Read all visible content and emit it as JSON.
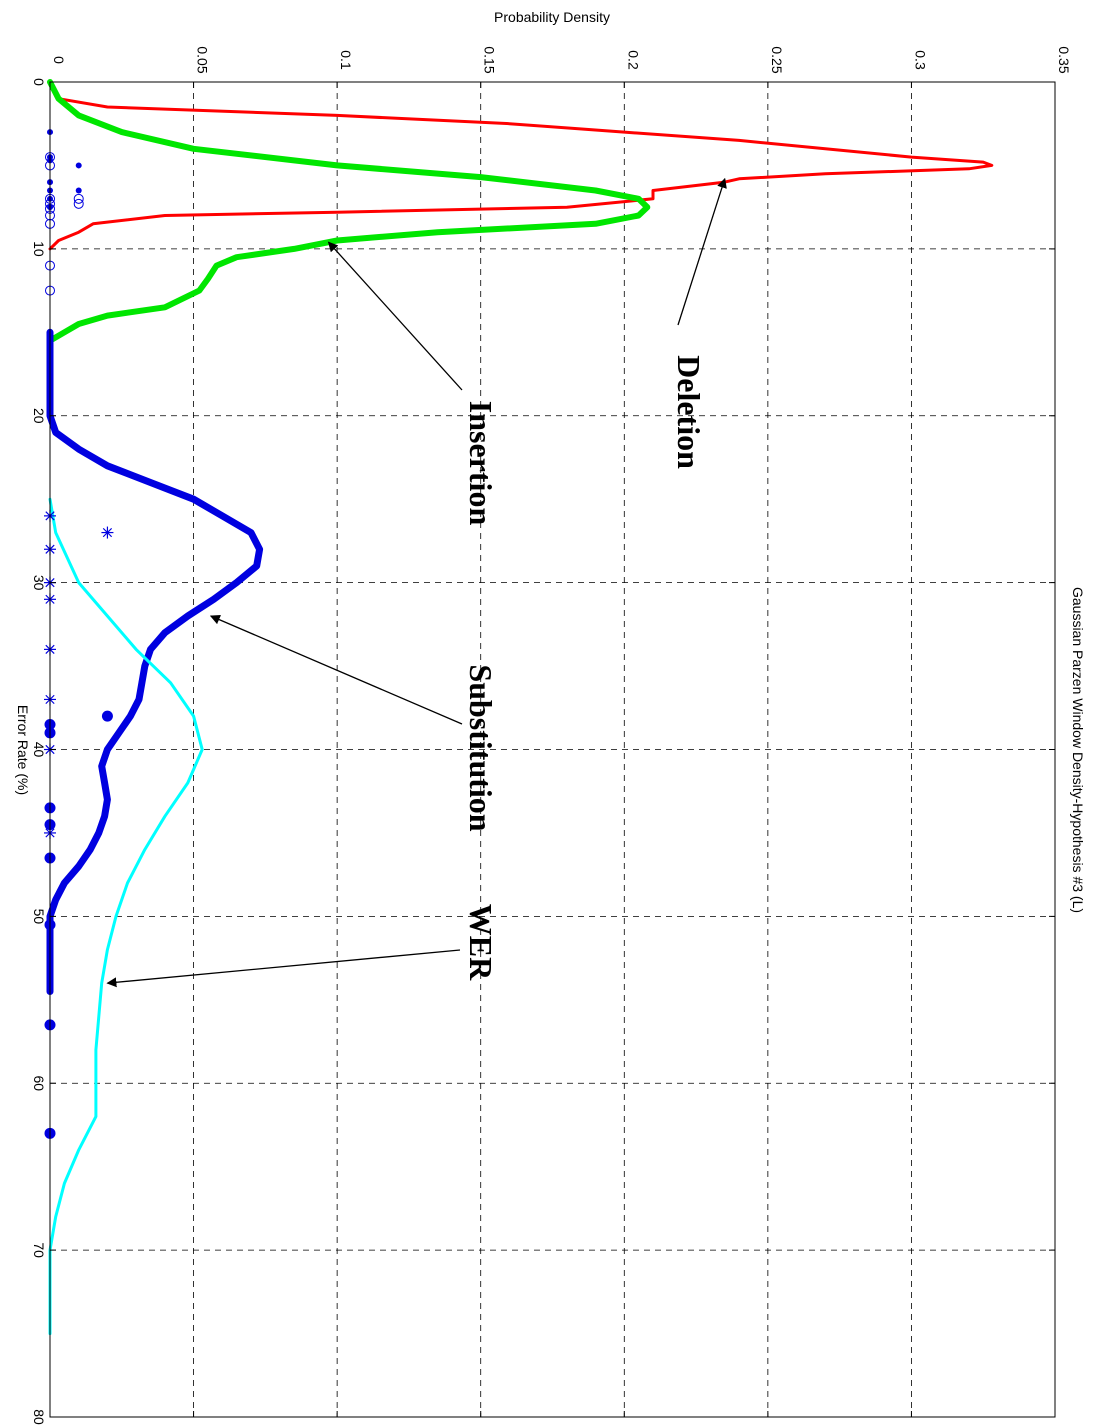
{
  "chart_data": {
    "type": "line",
    "title": "Gaussian Parzen Window Density-Hypothesis #3 (L)",
    "xlabel": "Error Rate (%)",
    "ylabel": "Probability Density",
    "xlim": [
      0,
      80
    ],
    "ylim": [
      0,
      0.35
    ],
    "x_ticks": [
      "0",
      "10",
      "20",
      "30",
      "40",
      "50",
      "60",
      "70",
      "80"
    ],
    "y_ticks": [
      "0",
      "0.05",
      "0.1",
      "0.15",
      "0.2",
      "0.25",
      "0.3",
      "0.35"
    ],
    "grid": true,
    "orientation": "rotated 90 degrees clockwise",
    "series": [
      {
        "color": "#ff0000",
        "points": [
          [
            0,
            0
          ],
          [
            1,
            0.003
          ],
          [
            1.5,
            0.02
          ],
          [
            2,
            0.1
          ],
          [
            2.5,
            0.16
          ],
          [
            3,
            0.2
          ],
          [
            3.5,
            0.24
          ],
          [
            4,
            0.27
          ],
          [
            4.5,
            0.3
          ],
          [
            4.8,
            0.325
          ],
          [
            5,
            0.328
          ],
          [
            5.2,
            0.32
          ],
          [
            5.5,
            0.27
          ],
          [
            5.8,
            0.24
          ],
          [
            6,
            0.235
          ],
          [
            6.5,
            0.21
          ],
          [
            7,
            0.21
          ],
          [
            7.5,
            0.18
          ],
          [
            7.8,
            0.1
          ],
          [
            8,
            0.04
          ],
          [
            8.5,
            0.015
          ],
          [
            9,
            0.01
          ],
          [
            9.5,
            0.003
          ],
          [
            10,
            0
          ]
        ]
      },
      {
        "color": "#00e600",
        "points": [
          [
            0,
            0
          ],
          [
            1,
            0.003
          ],
          [
            2,
            0.01
          ],
          [
            3,
            0.025
          ],
          [
            4,
            0.05
          ],
          [
            5,
            0.1
          ],
          [
            5.7,
            0.15
          ],
          [
            6.5,
            0.19
          ],
          [
            7,
            0.205
          ],
          [
            7.5,
            0.208
          ],
          [
            8,
            0.205
          ],
          [
            8.5,
            0.19
          ],
          [
            9,
            0.135
          ],
          [
            9.5,
            0.1
          ],
          [
            10,
            0.085
          ],
          [
            10.5,
            0.065
          ],
          [
            11,
            0.058
          ],
          [
            11.8,
            0.055
          ],
          [
            12.5,
            0.052
          ],
          [
            13.5,
            0.04
          ],
          [
            14,
            0.02
          ],
          [
            14.5,
            0.01
          ],
          [
            15,
            0.005
          ],
          [
            15.5,
            0
          ]
        ]
      },
      {
        "color": "#0000e0",
        "points": [
          [
            15,
            0
          ],
          [
            20,
            0
          ],
          [
            21,
            0.002
          ],
          [
            22,
            0.01
          ],
          [
            23,
            0.02
          ],
          [
            24,
            0.035
          ],
          [
            25,
            0.05
          ],
          [
            26,
            0.06
          ],
          [
            27,
            0.07
          ],
          [
            28,
            0.073
          ],
          [
            29,
            0.072
          ],
          [
            30,
            0.065
          ],
          [
            31,
            0.057
          ],
          [
            32,
            0.048
          ],
          [
            33,
            0.04
          ],
          [
            34,
            0.035
          ],
          [
            35,
            0.033
          ],
          [
            36,
            0.032
          ],
          [
            37,
            0.031
          ],
          [
            38,
            0.028
          ],
          [
            39,
            0.024
          ],
          [
            40,
            0.02
          ],
          [
            41,
            0.018
          ],
          [
            42,
            0.019
          ],
          [
            43,
            0.02
          ],
          [
            44,
            0.019
          ],
          [
            45,
            0.017
          ],
          [
            46,
            0.014
          ],
          [
            47,
            0.01
          ],
          [
            48,
            0.005
          ],
          [
            49,
            0.002
          ],
          [
            50,
            0
          ],
          [
            54.5,
            0
          ]
        ]
      },
      {
        "color": "#00ffff",
        "points": [
          [
            25,
            0
          ],
          [
            27,
            0.002
          ],
          [
            30,
            0.01
          ],
          [
            32,
            0.02
          ],
          [
            34,
            0.03
          ],
          [
            36,
            0.042
          ],
          [
            38,
            0.05
          ],
          [
            40,
            0.053
          ],
          [
            42,
            0.048
          ],
          [
            44,
            0.04
          ],
          [
            46,
            0.033
          ],
          [
            48,
            0.027
          ],
          [
            50,
            0.023
          ],
          [
            52,
            0.02
          ],
          [
            54,
            0.018
          ],
          [
            56,
            0.017
          ],
          [
            58,
            0.016
          ],
          [
            60,
            0.016
          ],
          [
            62,
            0.016
          ],
          [
            64,
            0.01
          ],
          [
            66,
            0.005
          ],
          [
            68,
            0.002
          ],
          [
            70,
            0
          ],
          [
            75,
            0
          ]
        ]
      }
    ],
    "scatter": [
      {
        "marker": "dot",
        "color": "#0000e0",
        "points": [
          [
            3,
            0
          ],
          [
            4.5,
            0
          ],
          [
            4.7,
            0
          ],
          [
            6,
            0
          ],
          [
            6.5,
            0
          ],
          [
            7,
            0
          ],
          [
            7.5,
            0
          ],
          [
            5,
            0.01
          ],
          [
            6.5,
            0.01
          ]
        ]
      },
      {
        "marker": "circle",
        "color": "#0000e0",
        "points": [
          [
            4.5,
            0
          ],
          [
            5,
            0
          ],
          [
            7,
            0
          ],
          [
            7.3,
            0
          ],
          [
            7.6,
            0
          ],
          [
            8,
            0
          ],
          [
            8.5,
            0
          ],
          [
            11,
            0
          ],
          [
            12.5,
            0
          ],
          [
            7,
            0.01
          ],
          [
            7.3,
            0.01
          ]
        ]
      },
      {
        "marker": "star",
        "color": "#0000e0",
        "points": [
          [
            26,
            0
          ],
          [
            28,
            0
          ],
          [
            30,
            0
          ],
          [
            31,
            0
          ],
          [
            34,
            0
          ],
          [
            37,
            0
          ],
          [
            40,
            0
          ],
          [
            45,
            0
          ],
          [
            27,
            0.02
          ]
        ]
      },
      {
        "marker": "bigdot",
        "color": "#0000e0",
        "points": [
          [
            38,
            0.02
          ],
          [
            38.5,
            0
          ],
          [
            39,
            0
          ],
          [
            43.5,
            0
          ],
          [
            44.5,
            0
          ],
          [
            46.5,
            0
          ],
          [
            50.5,
            0
          ],
          [
            56.5,
            0
          ],
          [
            63,
            0
          ]
        ]
      }
    ],
    "annotations": [
      {
        "text": "Deletion",
        "arrow_to": [
          5.8,
          0.235
        ]
      },
      {
        "text": "Insertion",
        "arrow_to": [
          9.6,
          0.097
        ]
      },
      {
        "text": "Substitution",
        "arrow_to": [
          32,
          0.056
        ]
      },
      {
        "text": "WER",
        "arrow_to": [
          54,
          0.02
        ]
      }
    ]
  }
}
